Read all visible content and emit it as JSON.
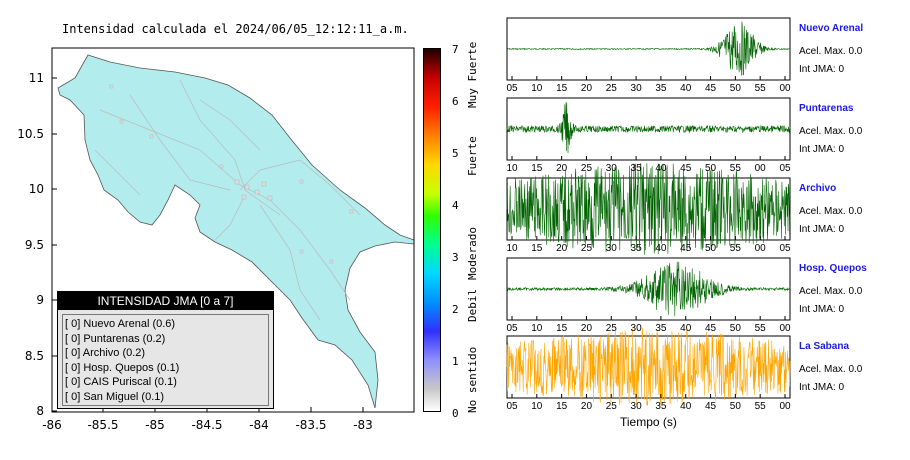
{
  "map": {
    "title": "Intensidad calculada el 2024/06/05_12:12:11_a.m.",
    "y_ticks": [
      "11",
      "10.5",
      "10",
      "9.5",
      "9",
      "8.5",
      "8"
    ],
    "x_ticks": [
      "-86",
      "-85.5",
      "-85",
      "-84.5",
      "-84",
      "-83.5",
      "-83"
    ],
    "land_color": "#b2ecec",
    "legend": {
      "title": "INTENSIDAD JMA [0 a 7]",
      "items": [
        {
          "label": "[ 0]  Nuevo Arenal (0.6)"
        },
        {
          "label": "[ 0]  Puntarenas (0.2)"
        },
        {
          "label": "[ 0]  Archivo (0.2)"
        },
        {
          "label": "[ 0]  Hosp. Quepos (0.1)"
        },
        {
          "label": "[ 0]  CAIS Puriscal (0.1)"
        },
        {
          "label": "[ 0]  San Miguel (0.1)"
        }
      ]
    }
  },
  "colorbar": {
    "ticks": [
      "7",
      "6",
      "5",
      "4",
      "3",
      "2",
      "1",
      "0"
    ],
    "labels": [
      "Muy Fuerte",
      "Fuerte",
      "Moderado",
      "Debil",
      "No sentido"
    ]
  },
  "chart_data": {
    "type": "line",
    "xlabel": "Tiempo (s)",
    "series": [
      {
        "name": "Nuevo Arenal",
        "accel": "Acel. Max. 0.0",
        "jma": "Int JMA: 0",
        "color": "#006400",
        "x_ticks": [
          "05",
          "10",
          "15",
          "20",
          "25",
          "30",
          "35",
          "40",
          "45",
          "50",
          "55",
          "00"
        ],
        "burst_center": 0.82,
        "burst_width": 0.06,
        "noise": 0.02,
        "amp": 1.0
      },
      {
        "name": "Puntarenas",
        "accel": "Acel. Max. 0.0",
        "jma": "Int JMA: 0",
        "color": "#006400",
        "x_ticks": [
          "10",
          "15",
          "20",
          "25",
          "30",
          "35",
          "40",
          "45",
          "50",
          "55",
          "00",
          "05"
        ],
        "burst_center": 0.21,
        "burst_width": 0.015,
        "noise": 0.12,
        "amp": 0.9
      },
      {
        "name": "Archivo",
        "accel": "Acel. Max. 0.0",
        "jma": "Int JMA: 0",
        "color": "#006400",
        "x_ticks": [
          "10",
          "15",
          "20",
          "25",
          "30",
          "35",
          "40",
          "45",
          "50",
          "55",
          "00",
          "05"
        ],
        "burst_center": 0.5,
        "burst_width": 0.5,
        "noise": 0.75,
        "amp": 0.9
      },
      {
        "name": "Hosp. Quepos",
        "accel": "Acel. Max. 0.0",
        "jma": "Int JMA: 0",
        "color": "#006400",
        "x_ticks": [
          "05",
          "10",
          "15",
          "20",
          "25",
          "30",
          "35",
          "40",
          "45",
          "50",
          "55",
          "00"
        ],
        "burst_center": 0.6,
        "burst_width": 0.12,
        "noise": 0.05,
        "amp": 1.0
      },
      {
        "name": "La Sabana",
        "accel": "Acel. Max. 0.0",
        "jma": "Int JMA: 0",
        "color": "#ffa500",
        "x_ticks": [
          "05",
          "10",
          "15",
          "20",
          "25",
          "30",
          "35",
          "40",
          "45",
          "50",
          "55",
          "00"
        ],
        "burst_center": 0.5,
        "burst_width": 0.5,
        "noise": 0.6,
        "amp": 0.8
      }
    ]
  }
}
